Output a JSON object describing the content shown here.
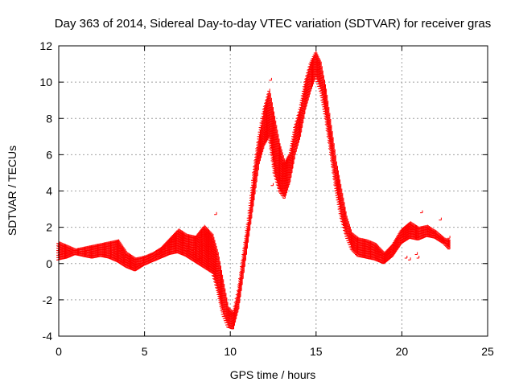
{
  "chart_data": {
    "type": "scatter",
    "title": "Day 363 of 2014, Sidereal Day-to-day VTEC variation (SDTVAR) for receiver gras",
    "xlabel": "GPS time / hours",
    "ylabel": "SDTVAR / TECUs",
    "xlim": [
      0,
      25
    ],
    "ylim": [
      -4,
      12
    ],
    "xticks": [
      0,
      5,
      10,
      15,
      20,
      25
    ],
    "yticks": [
      -4,
      -2,
      0,
      2,
      4,
      6,
      8,
      10,
      12
    ],
    "grid": true,
    "marker": "+",
    "series": [
      {
        "name": "SDTVAR",
        "color": "#ff0000",
        "upper": [
          [
            0,
            1.1
          ],
          [
            0.5,
            0.9
          ],
          [
            1,
            0.7
          ],
          [
            1.5,
            0.8
          ],
          [
            2,
            0.9
          ],
          [
            2.5,
            1.0
          ],
          [
            3,
            1.1
          ],
          [
            3.5,
            1.2
          ],
          [
            4,
            0.5
          ],
          [
            4.5,
            0.2
          ],
          [
            5,
            0.3
          ],
          [
            5.5,
            0.5
          ],
          [
            6,
            0.8
          ],
          [
            6.5,
            1.3
          ],
          [
            7,
            1.8
          ],
          [
            7.5,
            1.5
          ],
          [
            8,
            1.4
          ],
          [
            8.5,
            2.0
          ],
          [
            9,
            1.5
          ],
          [
            9.3,
            0.5
          ],
          [
            9.6,
            -1.0
          ],
          [
            9.9,
            -2.5
          ],
          [
            10.2,
            -2.8
          ],
          [
            10.5,
            -1.5
          ],
          [
            10.8,
            0.5
          ],
          [
            11.1,
            2.5
          ],
          [
            11.4,
            5.0
          ],
          [
            11.7,
            7.0
          ],
          [
            12,
            8.5
          ],
          [
            12.3,
            9.5
          ],
          [
            12.6,
            8.0
          ],
          [
            12.9,
            6.5
          ],
          [
            13.2,
            5.5
          ],
          [
            13.5,
            6.0
          ],
          [
            13.8,
            7.5
          ],
          [
            14.1,
            8.5
          ],
          [
            14.4,
            10.0
          ],
          [
            14.7,
            11.0
          ],
          [
            15,
            11.6
          ],
          [
            15.3,
            11.0
          ],
          [
            15.6,
            9.5
          ],
          [
            15.9,
            7.5
          ],
          [
            16.2,
            5.5
          ],
          [
            16.5,
            4.0
          ],
          [
            16.8,
            2.5
          ],
          [
            17.1,
            1.6
          ],
          [
            17.5,
            1.3
          ],
          [
            18,
            1.2
          ],
          [
            18.5,
            1.0
          ],
          [
            19,
            0.5
          ],
          [
            19.5,
            1.0
          ],
          [
            20,
            1.8
          ],
          [
            20.5,
            2.2
          ],
          [
            21,
            1.9
          ],
          [
            21.5,
            2.0
          ],
          [
            22,
            1.7
          ],
          [
            22.5,
            1.3
          ],
          [
            22.8,
            1.2
          ]
        ],
        "lower": [
          [
            0,
            0.2
          ],
          [
            0.5,
            0.3
          ],
          [
            1,
            0.5
          ],
          [
            1.5,
            0.4
          ],
          [
            2,
            0.3
          ],
          [
            2.5,
            0.4
          ],
          [
            3,
            0.3
          ],
          [
            3.5,
            0.1
          ],
          [
            4,
            -0.2
          ],
          [
            4.5,
            -0.4
          ],
          [
            5,
            -0.1
          ],
          [
            5.5,
            0.1
          ],
          [
            6,
            0.3
          ],
          [
            6.5,
            0.5
          ],
          [
            7,
            0.6
          ],
          [
            7.5,
            0.4
          ],
          [
            8,
            0.1
          ],
          [
            8.5,
            -0.2
          ],
          [
            9,
            -0.5
          ],
          [
            9.3,
            -1.5
          ],
          [
            9.6,
            -2.8
          ],
          [
            9.9,
            -3.5
          ],
          [
            10.2,
            -3.6
          ],
          [
            10.5,
            -2.5
          ],
          [
            10.8,
            -0.5
          ],
          [
            11.1,
            1.5
          ],
          [
            11.4,
            3.5
          ],
          [
            11.7,
            5.5
          ],
          [
            12,
            6.5
          ],
          [
            12.3,
            7.0
          ],
          [
            12.6,
            5.0
          ],
          [
            12.9,
            4.0
          ],
          [
            13.2,
            3.6
          ],
          [
            13.5,
            4.5
          ],
          [
            13.8,
            6.0
          ],
          [
            14.1,
            7.0
          ],
          [
            14.4,
            8.5
          ],
          [
            14.7,
            9.5
          ],
          [
            15,
            10.3
          ],
          [
            15.3,
            9.5
          ],
          [
            15.6,
            8.0
          ],
          [
            15.9,
            6.0
          ],
          [
            16.2,
            4.0
          ],
          [
            16.5,
            2.5
          ],
          [
            16.8,
            1.5
          ],
          [
            17.1,
            0.8
          ],
          [
            17.5,
            0.4
          ],
          [
            18,
            0.3
          ],
          [
            18.5,
            0.2
          ],
          [
            19,
            0.0
          ],
          [
            19.5,
            0.4
          ],
          [
            20,
            1.1
          ],
          [
            20.5,
            1.4
          ],
          [
            21,
            1.3
          ],
          [
            21.5,
            1.5
          ],
          [
            22,
            1.4
          ],
          [
            22.5,
            1.1
          ],
          [
            22.8,
            0.8
          ]
        ],
        "extras": [
          [
            3.5,
            1.2
          ],
          [
            4.2,
            0.1
          ],
          [
            8.2,
            0.2
          ],
          [
            9.2,
            2.7
          ],
          [
            12.4,
            10.1
          ],
          [
            12.5,
            4.3
          ],
          [
            13.0,
            4.0
          ],
          [
            20.3,
            0.3
          ],
          [
            20.5,
            0.2
          ],
          [
            20.9,
            0.5
          ],
          [
            21.0,
            0.3
          ],
          [
            21.2,
            2.8
          ],
          [
            22.3,
            2.4
          ],
          [
            22.8,
            1.4
          ]
        ]
      }
    ]
  }
}
